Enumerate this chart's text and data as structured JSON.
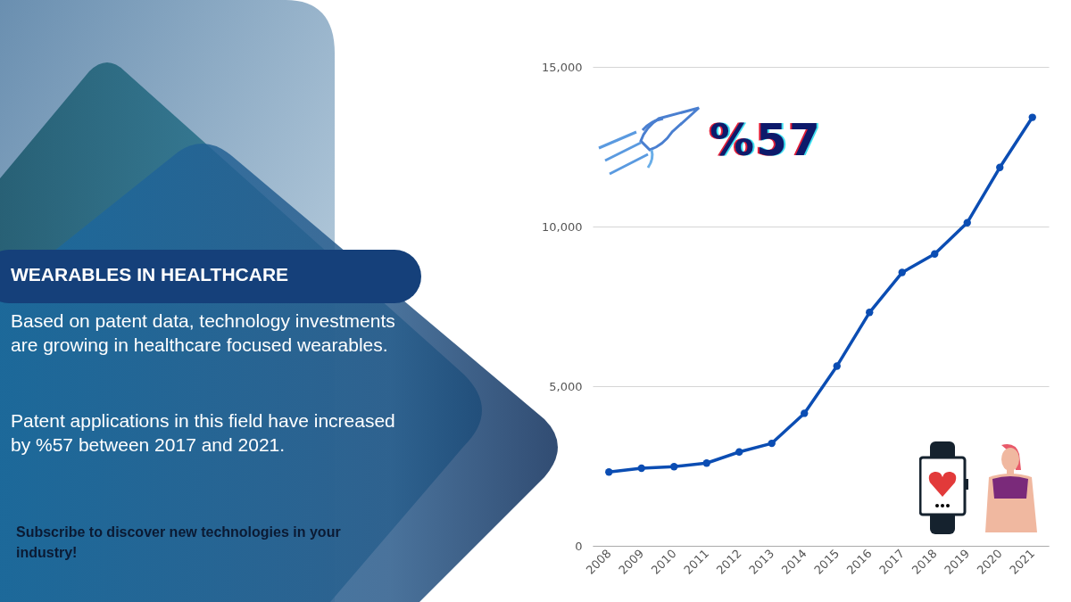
{
  "chart_data": {
    "type": "line",
    "title": "WEARABLES IN HEALTHCARE",
    "subtitle": "Based on patent data, technology investments are growing in healthcare focused wearables.",
    "annotations": [
      "Patent applications in this field have increased by %57 between 2017 and 2021.",
      "Subscribe to discover new technologies in your industry!",
      "%57"
    ],
    "categories": [
      "2008",
      "2009",
      "2010",
      "2011",
      "2012",
      "2013",
      "2014",
      "2015",
      "2016",
      "2017",
      "2018",
      "2019",
      "2020",
      "2021"
    ],
    "series": [
      {
        "color": "#0b4db3",
        "values": [
          2310,
          2430,
          2480,
          2590,
          2940,
          3210,
          4150,
          5630,
          7310,
          8560,
          9140,
          10120,
          11850,
          13420
        ]
      }
    ],
    "ylim": [
      0,
      15000
    ],
    "yticks": [
      {
        "value": 0,
        "label": "0"
      },
      {
        "value": 5000,
        "label": "5,000"
      },
      {
        "value": 10000,
        "label": "10,000"
      },
      {
        "value": 15000,
        "label": "15,000"
      }
    ],
    "grid": "y",
    "marker": "circle",
    "line_style": "solid"
  }
}
